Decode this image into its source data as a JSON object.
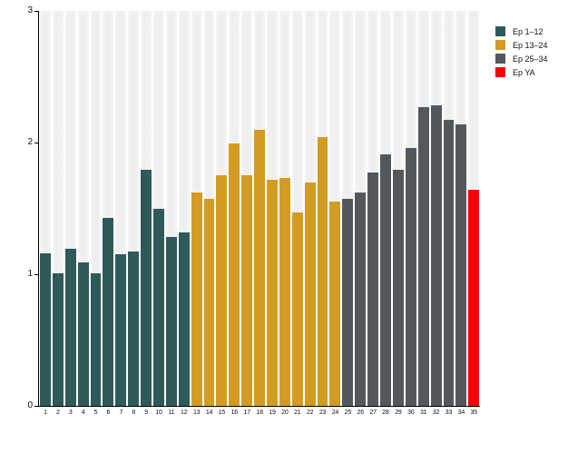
{
  "chart_data": {
    "type": "bar",
    "title": "",
    "xlabel": "",
    "ylabel": "",
    "ylim": [
      0,
      3
    ],
    "yticks": [
      0,
      1,
      2,
      3
    ],
    "grid": false,
    "legend_position": "top-right",
    "background_stripe_color": "#efefef",
    "categories": [
      "1",
      "2",
      "3",
      "4",
      "5",
      "6",
      "7",
      "8",
      "9",
      "10",
      "11",
      "12",
      "13",
      "14",
      "15",
      "16",
      "17",
      "18",
      "19",
      "20",
      "21",
      "22",
      "23",
      "24",
      "25",
      "26",
      "27",
      "28",
      "29",
      "30",
      "31",
      "32",
      "33",
      "34",
      "35"
    ],
    "values": [
      1.16,
      1.01,
      1.19,
      1.09,
      1.01,
      1.43,
      1.15,
      1.17,
      1.79,
      1.5,
      1.28,
      1.32,
      1.62,
      1.57,
      1.75,
      1.99,
      1.75,
      2.1,
      1.72,
      1.73,
      1.47,
      1.7,
      2.04,
      1.55,
      1.57,
      1.62,
      1.77,
      1.91,
      1.79,
      1.96,
      2.27,
      2.28,
      2.17,
      2.14,
      1.64
    ],
    "groups": [
      0,
      0,
      0,
      0,
      0,
      0,
      0,
      0,
      0,
      0,
      0,
      0,
      1,
      1,
      1,
      1,
      1,
      1,
      1,
      1,
      1,
      1,
      1,
      1,
      2,
      2,
      2,
      2,
      2,
      2,
      2,
      2,
      2,
      2,
      3
    ],
    "legend": [
      {
        "label": "Ep 1–12",
        "color": "#2E5B59"
      },
      {
        "label": "Ep 13–24",
        "color": "#D49B23"
      },
      {
        "label": "Ep 25–34",
        "color": "#54585C"
      },
      {
        "label": "Ep YA",
        "color": "#FA0000"
      }
    ]
  },
  "axis": {
    "color": "#000000",
    "tick_label_color": "#111111"
  }
}
